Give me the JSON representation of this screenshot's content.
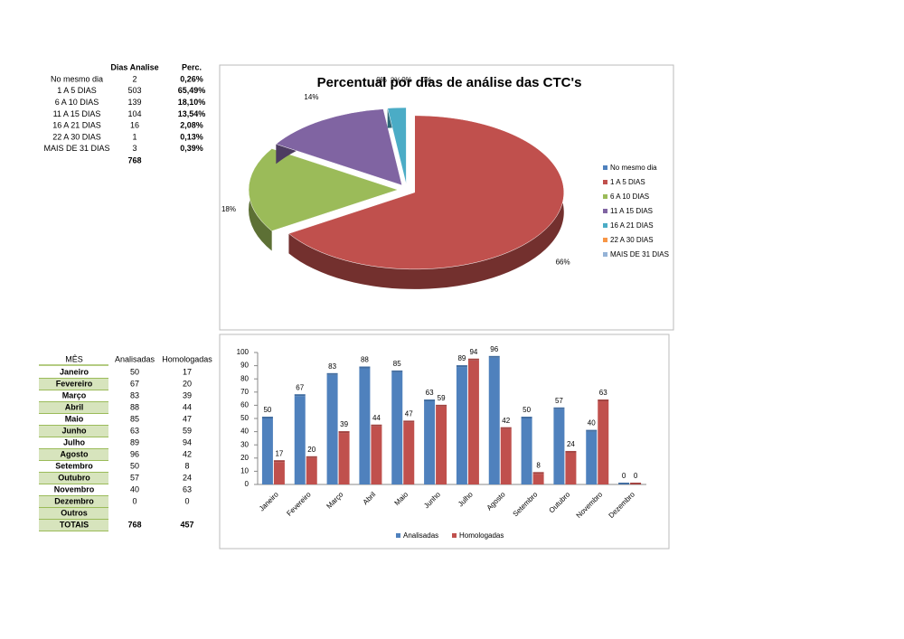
{
  "table1": {
    "headers": [
      "Dias Analise",
      "Perc."
    ],
    "rows": [
      [
        "No mesmo dia",
        "2",
        "0,26%"
      ],
      [
        "1 A 5 DIAS",
        "503",
        "65,49%"
      ],
      [
        "6 A 10 DIAS",
        "139",
        "18,10%"
      ],
      [
        "11 A 15 DIAS",
        "104",
        "13,54%"
      ],
      [
        "16 A 21 DIAS",
        "16",
        "2,08%"
      ],
      [
        "22 A 30 DIAS",
        "1",
        "0,13%"
      ],
      [
        "MAIS DE 31 DIAS",
        "3",
        "0,39%"
      ]
    ],
    "total": "768"
  },
  "table2": {
    "headers": [
      "MÊS",
      "Analisadas",
      "Homologadas"
    ],
    "rows": [
      [
        "Janeiro",
        "50",
        "17"
      ],
      [
        "Fevereiro",
        "67",
        "20"
      ],
      [
        "Março",
        "83",
        "39"
      ],
      [
        "Abril",
        "88",
        "44"
      ],
      [
        "Maio",
        "85",
        "47"
      ],
      [
        "Junho",
        "63",
        "59"
      ],
      [
        "Julho",
        "89",
        "94"
      ],
      [
        "Agosto",
        "96",
        "42"
      ],
      [
        "Setembro",
        "50",
        "8"
      ],
      [
        "Outubro",
        "57",
        "24"
      ],
      [
        "Novembro",
        "40",
        "63"
      ],
      [
        "Dezembro",
        "0",
        "0"
      ],
      [
        "Outros"
      ],
      [
        "TOTAIS",
        "768",
        "457"
      ]
    ]
  },
  "chart_data": [
    {
      "type": "pie",
      "title": "Percentual por dias de análise das CTC's",
      "categories": [
        "No mesmo dia",
        "1 A 5 DIAS",
        "6 A 10 DIAS",
        "11 A 15 DIAS",
        "16 A 21 DIAS",
        "22 A 30 DIAS",
        "MAIS DE 31 DIAS"
      ],
      "values": [
        0,
        66,
        18,
        14,
        2,
        0,
        0
      ],
      "value_labels": [
        "0%",
        "66%",
        "18%",
        "14%",
        "2%",
        "0%",
        "0%"
      ],
      "colors": [
        "#4f81bd",
        "#c0504d",
        "#9bbb59",
        "#8064a2",
        "#4bacc6",
        "#f79646",
        "#95b3d7"
      ],
      "legend": "right"
    },
    {
      "type": "bar",
      "categories": [
        "Janeiro",
        "Fevereiro",
        "Março",
        "Abril",
        "Maio",
        "Junho",
        "Julho",
        "Agosto",
        "Setembro",
        "Outubro",
        "Novembro",
        "Dezembro"
      ],
      "series": [
        {
          "name": "Analisadas",
          "color": "#4f81bd",
          "values": [
            50,
            67,
            83,
            88,
            85,
            63,
            89,
            96,
            50,
            57,
            40,
            0
          ]
        },
        {
          "name": "Homologadas",
          "color": "#c0504d",
          "values": [
            17,
            20,
            39,
            44,
            47,
            59,
            94,
            42,
            8,
            24,
            63,
            0
          ]
        }
      ],
      "ylim": [
        0,
        100
      ],
      "yticks": [
        0,
        10,
        20,
        30,
        40,
        50,
        60,
        70,
        80,
        90,
        100
      ],
      "grid": false,
      "legend": "bottom"
    }
  ]
}
